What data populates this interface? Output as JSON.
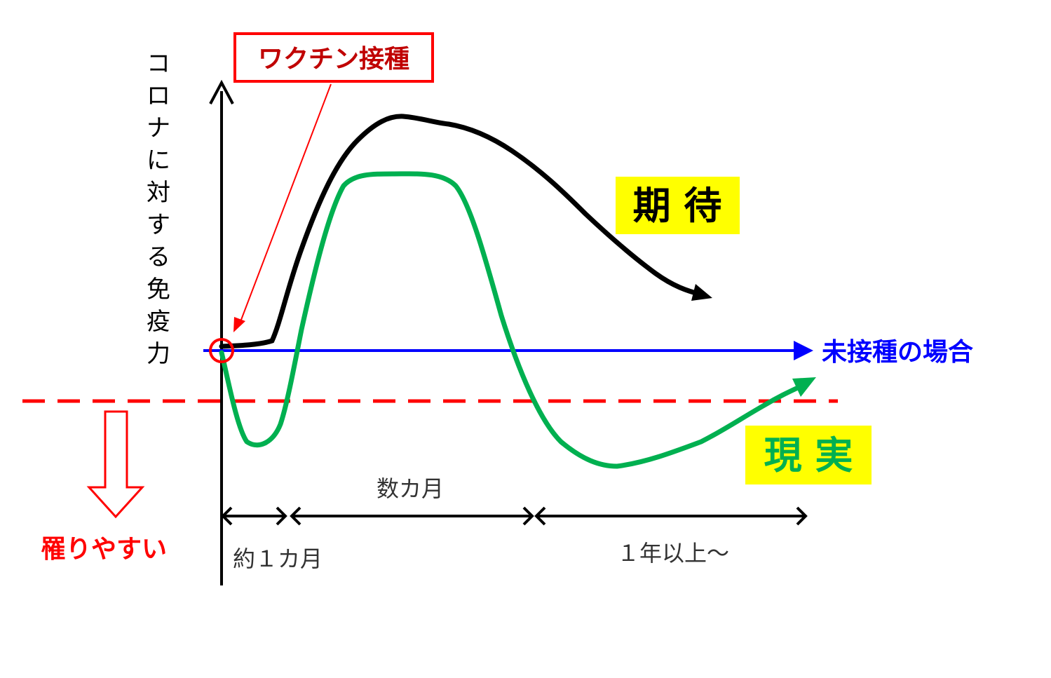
{
  "y_axis_label": "コロナに対する免疫力",
  "vaccination_label": "ワクチン接種",
  "expected_label": "期 待",
  "reality_label": "現 実",
  "unvaccinated_label": "未接種の場合",
  "infection_threshold_label": "罹りやすい",
  "periods": [
    {
      "label": "約１カ月"
    },
    {
      "label": "数カ月"
    },
    {
      "label": "１年以上～"
    }
  ],
  "colors": {
    "expected": "#000000",
    "reality": "#00b050",
    "unvaccinated": "#0000ff",
    "threshold": "#ff0000",
    "vaccination": "#c00000",
    "highlight": "#ffff00"
  }
}
